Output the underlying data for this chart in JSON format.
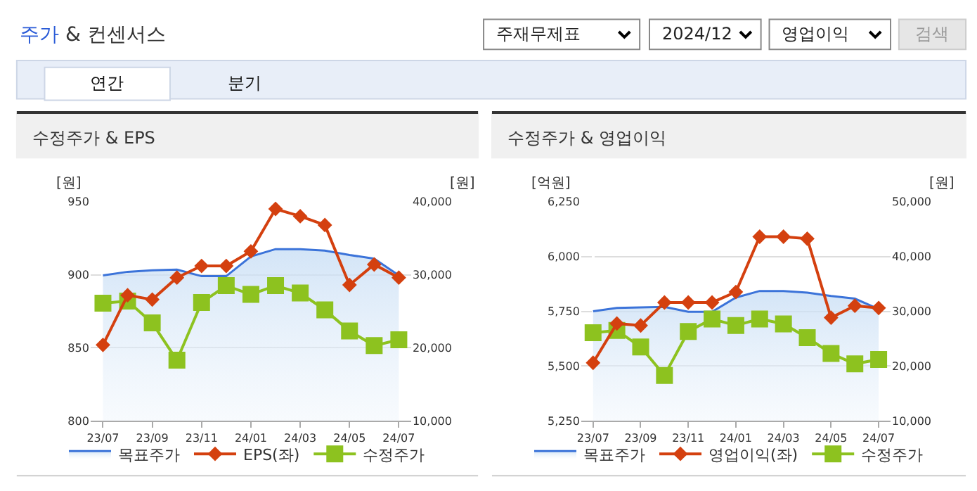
{
  "chart_data": [
    {
      "type": "other",
      "title": "주가 & 컨센서스",
      "annotations": [
        "주재무제표",
        "2024/12",
        "영업이익",
        "검색",
        "연간",
        "분기"
      ]
    },
    {
      "type": "line",
      "title": "수정주가 & EPS",
      "categories": [
        "23/07",
        null,
        "23/09",
        null,
        "23/11",
        null,
        "24/01",
        null,
        "24/03",
        null,
        "24/05",
        null,
        "24/07"
      ],
      "ylabel": "[원]",
      "y2label": "[원]",
      "ylim": [
        800,
        950
      ],
      "yticks": [
        800,
        850,
        900,
        950
      ],
      "y2lim": [
        10000,
        40000
      ],
      "y2ticks": [
        {
          "value": 10000,
          "label": "10,000"
        },
        {
          "value": 20000,
          "label": "20,000"
        },
        {
          "value": 30000,
          "label": "30,000"
        },
        {
          "value": 40000,
          "label": "40,000"
        }
      ],
      "grid": "y",
      "legend": "bottom",
      "series": [
        {
          "name": "목표주가",
          "type": "area",
          "axis": "y2",
          "color": "#3b73d9",
          "marker": "none",
          "values": [
            29900,
            30400,
            30600,
            30700,
            29800,
            29800,
            32500,
            33500,
            33500,
            33300,
            32700,
            32200,
            29900
          ]
        },
        {
          "name": "EPS(좌)",
          "type": "line",
          "color": "#d4400f",
          "marker": "diamond",
          "values": [
            852,
            886,
            883,
            898,
            906,
            906,
            916,
            945,
            940,
            934,
            893,
            907,
            898
          ]
        },
        {
          "name": "수정주가",
          "type": "line",
          "axis": "y2",
          "color": "#8dc21f",
          "marker": "square",
          "values": [
            26100,
            26400,
            23400,
            18300,
            26200,
            28500,
            27300,
            28500,
            27500,
            25200,
            22300,
            20300,
            21100
          ]
        }
      ]
    },
    {
      "type": "line",
      "title": "수정주가 & 영업이익",
      "categories": [
        "23/07",
        null,
        "23/09",
        null,
        "23/11",
        null,
        "24/01",
        null,
        "24/03",
        null,
        "24/05",
        null,
        "24/07"
      ],
      "ylabel": "[억원]",
      "y2label": "[원]",
      "ylim": [
        5250,
        6250
      ],
      "yticks": [
        {
          "value": 5250,
          "label": "5,250"
        },
        {
          "value": 5500,
          "label": "5,500"
        },
        {
          "value": 5750,
          "label": "5,750"
        },
        {
          "value": 6000,
          "label": "6,000"
        },
        {
          "value": 6250,
          "label": "6,250"
        }
      ],
      "y2lim": [
        10000,
        50000
      ],
      "y2ticks": [
        {
          "value": 10000,
          "label": "10,000"
        },
        {
          "value": 20000,
          "label": "20,000"
        },
        {
          "value": 30000,
          "label": "30,000"
        },
        {
          "value": 40000,
          "label": "40,000"
        },
        {
          "value": 50000,
          "label": "50,000"
        }
      ],
      "grid": "y",
      "legend": "bottom",
      "series": [
        {
          "name": "목표주가",
          "type": "area",
          "axis": "y2",
          "color": "#3b73d9",
          "marker": "none",
          "values": [
            30000,
            30600,
            30700,
            30800,
            29900,
            29900,
            32500,
            33700,
            33700,
            33400,
            32800,
            32300,
            30400
          ]
        },
        {
          "name": "영업이익(좌)",
          "type": "line",
          "color": "#d4400f",
          "marker": "diamond",
          "values": [
            5515,
            5694,
            5685,
            5790,
            5790,
            5790,
            5838,
            6090,
            6090,
            6081,
            5721,
            5775,
            5765
          ]
        },
        {
          "name": "수정주가",
          "type": "line",
          "axis": "y2",
          "color": "#8dc21f",
          "marker": "square",
          "values": [
            26100,
            26500,
            23500,
            18300,
            26300,
            28600,
            27400,
            28600,
            27700,
            25200,
            22300,
            20400,
            21200
          ]
        }
      ]
    }
  ]
}
